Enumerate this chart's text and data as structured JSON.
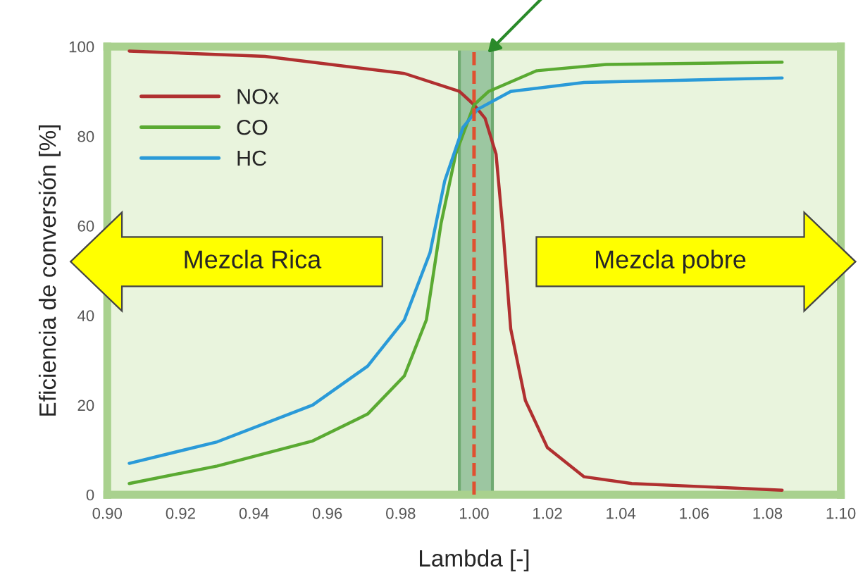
{
  "chart_data": {
    "type": "line",
    "xlabel": "Lambda [-]",
    "ylabel": "Eficiencia de conversión [%]",
    "series": [
      {
        "name": "NOx",
        "color": "#b03030",
        "x": [
          0.906,
          0.943,
          0.981,
          0.996,
          1.0,
          1.003,
          1.006,
          1.008,
          1.01,
          1.014,
          1.02,
          1.03,
          1.043,
          1.084
        ],
        "values": [
          99,
          97.8,
          94,
          90,
          87,
          84,
          76,
          58,
          37,
          21,
          10.5,
          4,
          2.5,
          1
        ]
      },
      {
        "name": "CO",
        "color": "#5aaa32",
        "x": [
          0.906,
          0.93,
          0.956,
          0.971,
          0.981,
          0.987,
          0.991,
          0.995,
          1.0,
          1.004,
          1.017,
          1.036,
          1.084
        ],
        "values": [
          2.5,
          6.4,
          12,
          18,
          26.5,
          39,
          60.5,
          76,
          87,
          90,
          94.6,
          96,
          96.5
        ]
      },
      {
        "name": "HC",
        "color": "#2a9ad8",
        "x": [
          0.906,
          0.93,
          0.956,
          0.971,
          0.981,
          0.988,
          0.992,
          0.997,
          1.001,
          1.01,
          1.03,
          1.084
        ],
        "values": [
          7,
          11.8,
          20,
          28.7,
          39,
          54,
          70,
          82,
          86,
          90,
          92,
          93
        ]
      }
    ],
    "xlim": [
      0.9,
      1.1
    ],
    "ylim": [
      0,
      100
    ],
    "xticks": [
      {
        "value": 0.9,
        "label": "0.90"
      },
      {
        "value": 0.92,
        "label": "0.92"
      },
      {
        "value": 0.94,
        "label": "0.94"
      },
      {
        "value": 0.96,
        "label": "0.96"
      },
      {
        "value": 0.98,
        "label": "0.98"
      },
      {
        "value": 1.0,
        "label": "1.00"
      },
      {
        "value": 1.02,
        "label": "1.02"
      },
      {
        "value": 1.04,
        "label": "1.04"
      },
      {
        "value": 1.06,
        "label": "1.06"
      },
      {
        "value": 1.08,
        "label": "1.08"
      },
      {
        "value": 1.1,
        "label": "1.10"
      }
    ],
    "yticks": [
      0,
      20,
      40,
      60,
      80,
      100
    ],
    "ref_lines": [
      {
        "axis": "x",
        "value": 1.0,
        "color": "#e05030",
        "line_style": "dashed"
      }
    ],
    "bands": [
      {
        "axis": "x",
        "from": 0.996,
        "to": 1.005,
        "color": "#6aa87a"
      }
    ],
    "annotations": [
      "Mezcla Rica",
      "Mezcla pobre"
    ],
    "legend": "top left",
    "grid": false,
    "marker": "none",
    "line_style": "solid"
  }
}
